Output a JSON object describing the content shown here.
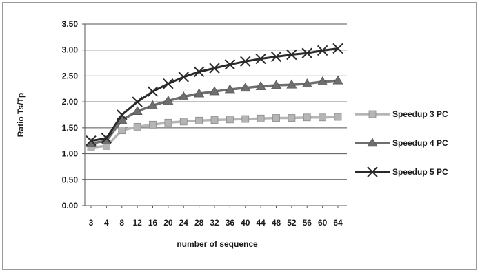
{
  "chart_data": {
    "type": "line",
    "title": "",
    "xlabel": "number of sequence",
    "ylabel": "Ratio Ts/Tp",
    "ylim": [
      0,
      3.5
    ],
    "yticks": [
      "0.00",
      "0.50",
      "1.00",
      "1.50",
      "2.00",
      "2.50",
      "3.00",
      "3.50"
    ],
    "categories": [
      "3",
      "4",
      "8",
      "12",
      "16",
      "20",
      "24",
      "28",
      "32",
      "36",
      "40",
      "44",
      "48",
      "52",
      "56",
      "60",
      "64"
    ],
    "grid": true,
    "legend_position": "right",
    "series": [
      {
        "name": "Speedup 3 PC",
        "marker": "square",
        "color": "#b5b5b5",
        "values": [
          1.12,
          1.15,
          1.45,
          1.52,
          1.56,
          1.6,
          1.62,
          1.64,
          1.65,
          1.66,
          1.67,
          1.68,
          1.69,
          1.69,
          1.7,
          1.7,
          1.71
        ]
      },
      {
        "name": "Speedup 4 PC",
        "marker": "triangle",
        "color": "#6e6e6e",
        "values": [
          1.2,
          1.25,
          1.65,
          1.82,
          1.93,
          2.02,
          2.1,
          2.16,
          2.2,
          2.24,
          2.27,
          2.3,
          2.32,
          2.33,
          2.35,
          2.39,
          2.41
        ]
      },
      {
        "name": "Speedup 5 PC",
        "marker": "x",
        "color": "#2a2a2a",
        "values": [
          1.25,
          1.3,
          1.75,
          2.0,
          2.2,
          2.35,
          2.48,
          2.58,
          2.65,
          2.72,
          2.78,
          2.83,
          2.87,
          2.91,
          2.94,
          2.99,
          3.03
        ]
      }
    ]
  }
}
